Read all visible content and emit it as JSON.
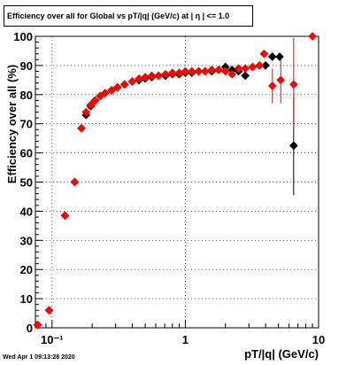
{
  "chart_data": {
    "type": "scatter",
    "title": "Efficiency over all for Global vs pT/|q| (GeV/c) at |  η | <= 1.0",
    "xlabel": "pT/|q| (GeV/c)",
    "ylabel": "Efficiency over all (%)",
    "xscale": "log",
    "xlim": [
      0.075,
      10
    ],
    "ylim": [
      0,
      100
    ],
    "grid": true,
    "x_ticks": [
      {
        "value": 0.1,
        "label": "10⁻¹"
      },
      {
        "value": 1,
        "label": "1"
      },
      {
        "value": 10,
        "label": "10"
      }
    ],
    "y_ticks": [
      0,
      10,
      20,
      30,
      40,
      50,
      60,
      70,
      80,
      90,
      100
    ],
    "series": [
      {
        "color": "#000000",
        "points": [
          {
            "x": 0.078,
            "y": 1
          },
          {
            "x": 0.095,
            "y": 6
          },
          {
            "x": 0.125,
            "y": 38.5
          },
          {
            "x": 0.148,
            "y": 50
          },
          {
            "x": 0.166,
            "y": 68.5
          },
          {
            "x": 0.18,
            "y": 73
          },
          {
            "x": 0.195,
            "y": 76
          },
          {
            "x": 0.21,
            "y": 78
          },
          {
            "x": 0.23,
            "y": 79.5
          },
          {
            "x": 0.25,
            "y": 80.5
          },
          {
            "x": 0.28,
            "y": 81.5
          },
          {
            "x": 0.31,
            "y": 82.5
          },
          {
            "x": 0.35,
            "y": 83.5
          },
          {
            "x": 0.4,
            "y": 84.5
          },
          {
            "x": 0.45,
            "y": 85
          },
          {
            "x": 0.5,
            "y": 85.5
          },
          {
            "x": 0.56,
            "y": 86
          },
          {
            "x": 0.63,
            "y": 86.5
          },
          {
            "x": 0.71,
            "y": 86.5
          },
          {
            "x": 0.8,
            "y": 87
          },
          {
            "x": 0.9,
            "y": 87
          },
          {
            "x": 1.0,
            "y": 87.5
          },
          {
            "x": 1.12,
            "y": 87.5
          },
          {
            "x": 1.26,
            "y": 88
          },
          {
            "x": 1.41,
            "y": 88
          },
          {
            "x": 1.58,
            "y": 88
          },
          {
            "x": 1.78,
            "y": 88.5
          },
          {
            "x": 2.0,
            "y": 89.5
          },
          {
            "x": 2.24,
            "y": 88.5
          },
          {
            "x": 2.51,
            "y": 88
          },
          {
            "x": 2.82,
            "y": 86.5
          },
          {
            "x": 3.2,
            "y": 89.5
          },
          {
            "x": 3.6,
            "y": 90
          },
          {
            "x": 4.0,
            "y": 90
          },
          {
            "x": 4.5,
            "y": 93
          },
          {
            "x": 5.1,
            "y": 93
          },
          {
            "x": 6.5,
            "y": 62.5,
            "err": 17
          }
        ]
      },
      {
        "color": "#ff0000",
        "points": [
          {
            "x": 0.078,
            "y": 1
          },
          {
            "x": 0.095,
            "y": 6
          },
          {
            "x": 0.125,
            "y": 38.5
          },
          {
            "x": 0.148,
            "y": 50
          },
          {
            "x": 0.166,
            "y": 68.5
          },
          {
            "x": 0.18,
            "y": 74
          },
          {
            "x": 0.195,
            "y": 76.5
          },
          {
            "x": 0.21,
            "y": 78
          },
          {
            "x": 0.23,
            "y": 79.5
          },
          {
            "x": 0.25,
            "y": 80.5
          },
          {
            "x": 0.28,
            "y": 81.5
          },
          {
            "x": 0.31,
            "y": 82.5
          },
          {
            "x": 0.35,
            "y": 83.5
          },
          {
            "x": 0.4,
            "y": 84.5
          },
          {
            "x": 0.45,
            "y": 85.5
          },
          {
            "x": 0.5,
            "y": 86
          },
          {
            "x": 0.56,
            "y": 86.5
          },
          {
            "x": 0.63,
            "y": 86.5
          },
          {
            "x": 0.71,
            "y": 87
          },
          {
            "x": 0.8,
            "y": 87.5
          },
          {
            "x": 0.9,
            "y": 87.5
          },
          {
            "x": 1.0,
            "y": 88
          },
          {
            "x": 1.12,
            "y": 88
          },
          {
            "x": 1.26,
            "y": 88
          },
          {
            "x": 1.41,
            "y": 88
          },
          {
            "x": 1.58,
            "y": 88.5
          },
          {
            "x": 1.78,
            "y": 88.5
          },
          {
            "x": 2.0,
            "y": 88
          },
          {
            "x": 2.24,
            "y": 87
          },
          {
            "x": 2.51,
            "y": 89
          },
          {
            "x": 2.82,
            "y": 89
          },
          {
            "x": 3.2,
            "y": 89.5
          },
          {
            "x": 3.6,
            "y": 90
          },
          {
            "x": 3.9,
            "y": 94
          },
          {
            "x": 4.5,
            "y": 83,
            "err": 6
          },
          {
            "x": 5.2,
            "y": 85,
            "err": 8
          },
          {
            "x": 6.5,
            "y": 83.5,
            "err": 16
          },
          {
            "x": 9.0,
            "y": 100
          }
        ]
      }
    ]
  },
  "footer": {
    "timestamp": "Wed Apr  1 09:13:28 2020"
  }
}
